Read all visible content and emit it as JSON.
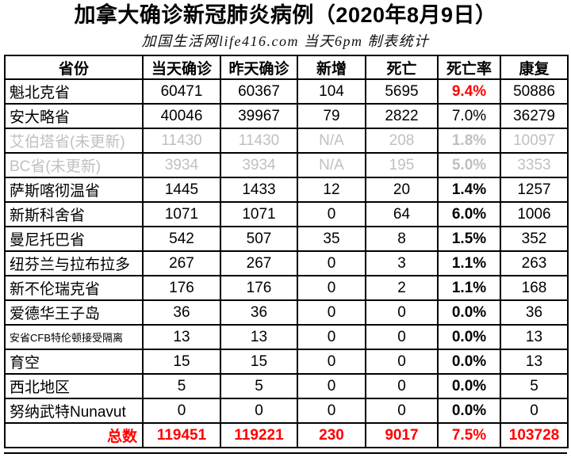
{
  "chart_data": {
    "type": "table",
    "title": "加拿大确诊新冠肺炎病例（2020年8月9日）",
    "subtitle": "加国生活网life416.com 当天6pm 制表统计",
    "columns": [
      "省份",
      "当天确诊",
      "昨天确诊",
      "新增",
      "死亡",
      "死亡率",
      "康复"
    ],
    "column_keys": [
      "province",
      "today",
      "yesterday",
      "added",
      "deaths",
      "death_rate",
      "recovered"
    ],
    "rows": [
      {
        "province": "魁北克省",
        "today": "60471",
        "yesterday": "60367",
        "added": "104",
        "deaths": "5695",
        "death_rate": "9.4%",
        "recovered": "50886",
        "muted": false,
        "small_font": false,
        "rate_style": "red-bold"
      },
      {
        "province": "安大略省",
        "today": "40046",
        "yesterday": "39967",
        "added": "79",
        "deaths": "2822",
        "death_rate": "7.0%",
        "recovered": "36279",
        "muted": false,
        "small_font": false,
        "rate_style": "normal"
      },
      {
        "province": "艾伯塔省(未更新)",
        "today": "11430",
        "yesterday": "11430",
        "added": "N/A",
        "deaths": "208",
        "death_rate": "1.8%",
        "recovered": "10097",
        "muted": true,
        "small_font": false,
        "rate_style": "bold"
      },
      {
        "province": "BC省(未更新)",
        "today": "3934",
        "yesterday": "3934",
        "added": "N/A",
        "deaths": "195",
        "death_rate": "5.0%",
        "recovered": "3353",
        "muted": true,
        "small_font": false,
        "rate_style": "bold"
      },
      {
        "province": "萨斯喀彻温省",
        "today": "1445",
        "yesterday": "1433",
        "added": "12",
        "deaths": "20",
        "death_rate": "1.4%",
        "recovered": "1257",
        "muted": false,
        "small_font": false,
        "rate_style": "bold"
      },
      {
        "province": "新斯科舍省",
        "today": "1071",
        "yesterday": "1071",
        "added": "0",
        "deaths": "64",
        "death_rate": "6.0%",
        "recovered": "1006",
        "muted": false,
        "small_font": false,
        "rate_style": "bold"
      },
      {
        "province": "曼尼托巴省",
        "today": "542",
        "yesterday": "507",
        "added": "35",
        "deaths": "8",
        "death_rate": "1.5%",
        "recovered": "352",
        "muted": false,
        "small_font": false,
        "rate_style": "bold"
      },
      {
        "province": "纽芬兰与拉布拉多",
        "today": "267",
        "yesterday": "267",
        "added": "0",
        "deaths": "3",
        "death_rate": "1.1%",
        "recovered": "263",
        "muted": false,
        "small_font": false,
        "rate_style": "bold"
      },
      {
        "province": "新不伦瑞克省",
        "today": "176",
        "yesterday": "176",
        "added": "0",
        "deaths": "2",
        "death_rate": "1.1%",
        "recovered": "168",
        "muted": false,
        "small_font": false,
        "rate_style": "bold"
      },
      {
        "province": "爱德华王子岛",
        "today": "36",
        "yesterday": "36",
        "added": "0",
        "deaths": "0",
        "death_rate": "0.0%",
        "recovered": "36",
        "muted": false,
        "small_font": false,
        "rate_style": "bold"
      },
      {
        "province": "安省CFB特伦顿接受隔离",
        "today": "13",
        "yesterday": "13",
        "added": "0",
        "deaths": "0",
        "death_rate": "0.0%",
        "recovered": "13",
        "muted": false,
        "small_font": true,
        "rate_style": "bold"
      },
      {
        "province": "育空",
        "today": "15",
        "yesterday": "15",
        "added": "0",
        "deaths": "0",
        "death_rate": "0.0%",
        "recovered": "13",
        "muted": false,
        "small_font": false,
        "rate_style": "bold"
      },
      {
        "province": "西北地区",
        "today": "5",
        "yesterday": "5",
        "added": "0",
        "deaths": "0",
        "death_rate": "0.0%",
        "recovered": "5",
        "muted": false,
        "small_font": false,
        "rate_style": "bold"
      },
      {
        "province": "努纳武特Nunavut",
        "today": "0",
        "yesterday": "0",
        "added": "0",
        "deaths": "0",
        "death_rate": "0.0%",
        "recovered": "0",
        "muted": false,
        "small_font": false,
        "rate_style": "bold"
      }
    ],
    "total": {
      "province": "总数",
      "today": "119451",
      "yesterday": "119221",
      "added": "230",
      "deaths": "9017",
      "death_rate": "7.5%",
      "recovered": "103728"
    }
  },
  "colors": {
    "accent_red": "#ff0000",
    "muted_gray": "#c0c0c0",
    "border_black": "#000000"
  }
}
